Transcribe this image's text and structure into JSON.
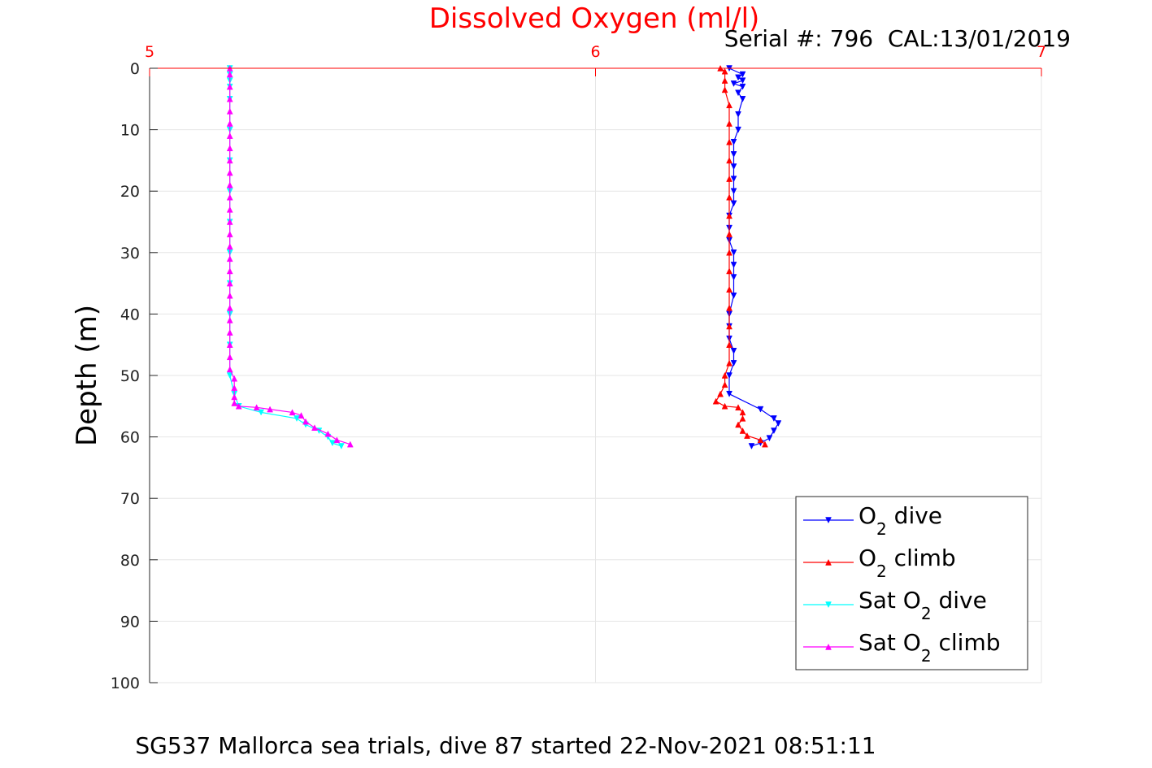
{
  "chart_data": {
    "type": "line",
    "title": "Dissolved Oxygen (ml/l)",
    "annotation": "Serial #: 796  CAL:13/01/2019",
    "footer": "SG537 Mallorca sea trials, dive 87 started 22-Nov-2021 08:51:11",
    "ylabel": "Depth (m)",
    "xlabel": "",
    "xlim": [
      5,
      7
    ],
    "ylim": [
      0,
      100
    ],
    "y_reversed": true,
    "x_ticks": [
      "5",
      "6",
      "7"
    ],
    "y_ticks": [
      "0",
      "10",
      "20",
      "30",
      "40",
      "50",
      "60",
      "70",
      "80",
      "90",
      "100"
    ],
    "grid": true,
    "legend_position": "bottom-right",
    "series": [
      {
        "name": "O2 dive",
        "label_main": "O",
        "label_sub": "2",
        "label_suffix": " dive",
        "color": "#0000ff",
        "marker": "down-triangle",
        "points": [
          [
            6.3,
            0
          ],
          [
            6.33,
            1
          ],
          [
            6.32,
            1.5
          ],
          [
            6.33,
            2
          ],
          [
            6.31,
            2.5
          ],
          [
            6.33,
            3
          ],
          [
            6.32,
            4
          ],
          [
            6.33,
            5
          ],
          [
            6.32,
            7.5
          ],
          [
            6.32,
            10
          ],
          [
            6.31,
            12
          ],
          [
            6.31,
            14
          ],
          [
            6.31,
            16
          ],
          [
            6.31,
            18
          ],
          [
            6.31,
            20
          ],
          [
            6.31,
            22
          ],
          [
            6.3,
            24
          ],
          [
            6.3,
            26
          ],
          [
            6.3,
            28
          ],
          [
            6.31,
            30
          ],
          [
            6.31,
            32
          ],
          [
            6.31,
            34
          ],
          [
            6.31,
            37
          ],
          [
            6.3,
            40
          ],
          [
            6.3,
            42
          ],
          [
            6.3,
            44
          ],
          [
            6.31,
            46
          ],
          [
            6.31,
            48
          ],
          [
            6.3,
            50
          ],
          [
            6.3,
            53
          ],
          [
            6.37,
            55.5
          ],
          [
            6.4,
            57
          ],
          [
            6.41,
            57.8
          ],
          [
            6.4,
            59
          ],
          [
            6.39,
            60.2
          ],
          [
            6.37,
            61
          ],
          [
            6.35,
            61.5
          ]
        ]
      },
      {
        "name": "O2 climb",
        "label_main": "O",
        "label_sub": "2",
        "label_suffix": " climb",
        "color": "#ff0000",
        "marker": "up-triangle",
        "points": [
          [
            6.38,
            61.2
          ],
          [
            6.37,
            60.5
          ],
          [
            6.34,
            59.8
          ],
          [
            6.33,
            59
          ],
          [
            6.32,
            58
          ],
          [
            6.33,
            57
          ],
          [
            6.33,
            56
          ],
          [
            6.32,
            55.2
          ],
          [
            6.29,
            55
          ],
          [
            6.27,
            54.2
          ],
          [
            6.28,
            53
          ],
          [
            6.29,
            51.5
          ],
          [
            6.29,
            50
          ],
          [
            6.3,
            48
          ],
          [
            6.3,
            45
          ],
          [
            6.3,
            42
          ],
          [
            6.3,
            39
          ],
          [
            6.3,
            36
          ],
          [
            6.3,
            33
          ],
          [
            6.3,
            30
          ],
          [
            6.3,
            27
          ],
          [
            6.3,
            24
          ],
          [
            6.3,
            21
          ],
          [
            6.3,
            18
          ],
          [
            6.3,
            15
          ],
          [
            6.3,
            12
          ],
          [
            6.3,
            9
          ],
          [
            6.3,
            6
          ],
          [
            6.29,
            3.5
          ],
          [
            6.29,
            2
          ],
          [
            6.29,
            0.5
          ],
          [
            6.28,
            0
          ]
        ]
      },
      {
        "name": "Sat O2 dive",
        "label_main": "Sat O",
        "label_sub": "2",
        "label_suffix": " dive",
        "color": "#00ffff",
        "marker": "down-triangle",
        "points": [
          [
            5.18,
            0
          ],
          [
            5.18,
            1
          ],
          [
            5.18,
            2
          ],
          [
            5.18,
            3
          ],
          [
            5.18,
            5
          ],
          [
            5.18,
            10
          ],
          [
            5.18,
            15
          ],
          [
            5.18,
            20
          ],
          [
            5.18,
            25
          ],
          [
            5.18,
            30
          ],
          [
            5.18,
            35
          ],
          [
            5.18,
            40
          ],
          [
            5.18,
            45
          ],
          [
            5.18,
            50
          ],
          [
            5.19,
            53
          ],
          [
            5.2,
            55
          ],
          [
            5.25,
            56
          ],
          [
            5.33,
            57
          ],
          [
            5.35,
            58
          ],
          [
            5.38,
            59
          ],
          [
            5.4,
            60
          ],
          [
            5.41,
            61
          ],
          [
            5.43,
            61.5
          ]
        ]
      },
      {
        "name": "Sat O2 climb",
        "label_main": "Sat O",
        "label_sub": "2",
        "label_suffix": " climb",
        "color": "#ff00ff",
        "marker": "up-triangle",
        "points": [
          [
            5.45,
            61.2
          ],
          [
            5.42,
            60.5
          ],
          [
            5.4,
            59.5
          ],
          [
            5.37,
            58.5
          ],
          [
            5.35,
            57.5
          ],
          [
            5.34,
            56.5
          ],
          [
            5.32,
            56
          ],
          [
            5.27,
            55.5
          ],
          [
            5.24,
            55.2
          ],
          [
            5.2,
            55
          ],
          [
            5.19,
            54.5
          ],
          [
            5.19,
            53.5
          ],
          [
            5.19,
            52
          ],
          [
            5.19,
            50.5
          ],
          [
            5.18,
            49
          ],
          [
            5.18,
            47
          ],
          [
            5.18,
            45
          ],
          [
            5.18,
            43
          ],
          [
            5.18,
            41
          ],
          [
            5.18,
            39
          ],
          [
            5.18,
            37
          ],
          [
            5.18,
            35
          ],
          [
            5.18,
            33
          ],
          [
            5.18,
            31
          ],
          [
            5.18,
            29
          ],
          [
            5.18,
            27
          ],
          [
            5.18,
            25
          ],
          [
            5.18,
            23
          ],
          [
            5.18,
            21
          ],
          [
            5.18,
            19
          ],
          [
            5.18,
            17
          ],
          [
            5.18,
            15
          ],
          [
            5.18,
            13
          ],
          [
            5.18,
            11
          ],
          [
            5.18,
            9
          ],
          [
            5.18,
            7
          ],
          [
            5.18,
            5
          ],
          [
            5.18,
            3
          ],
          [
            5.18,
            1
          ],
          [
            5.18,
            0
          ]
        ]
      }
    ]
  }
}
